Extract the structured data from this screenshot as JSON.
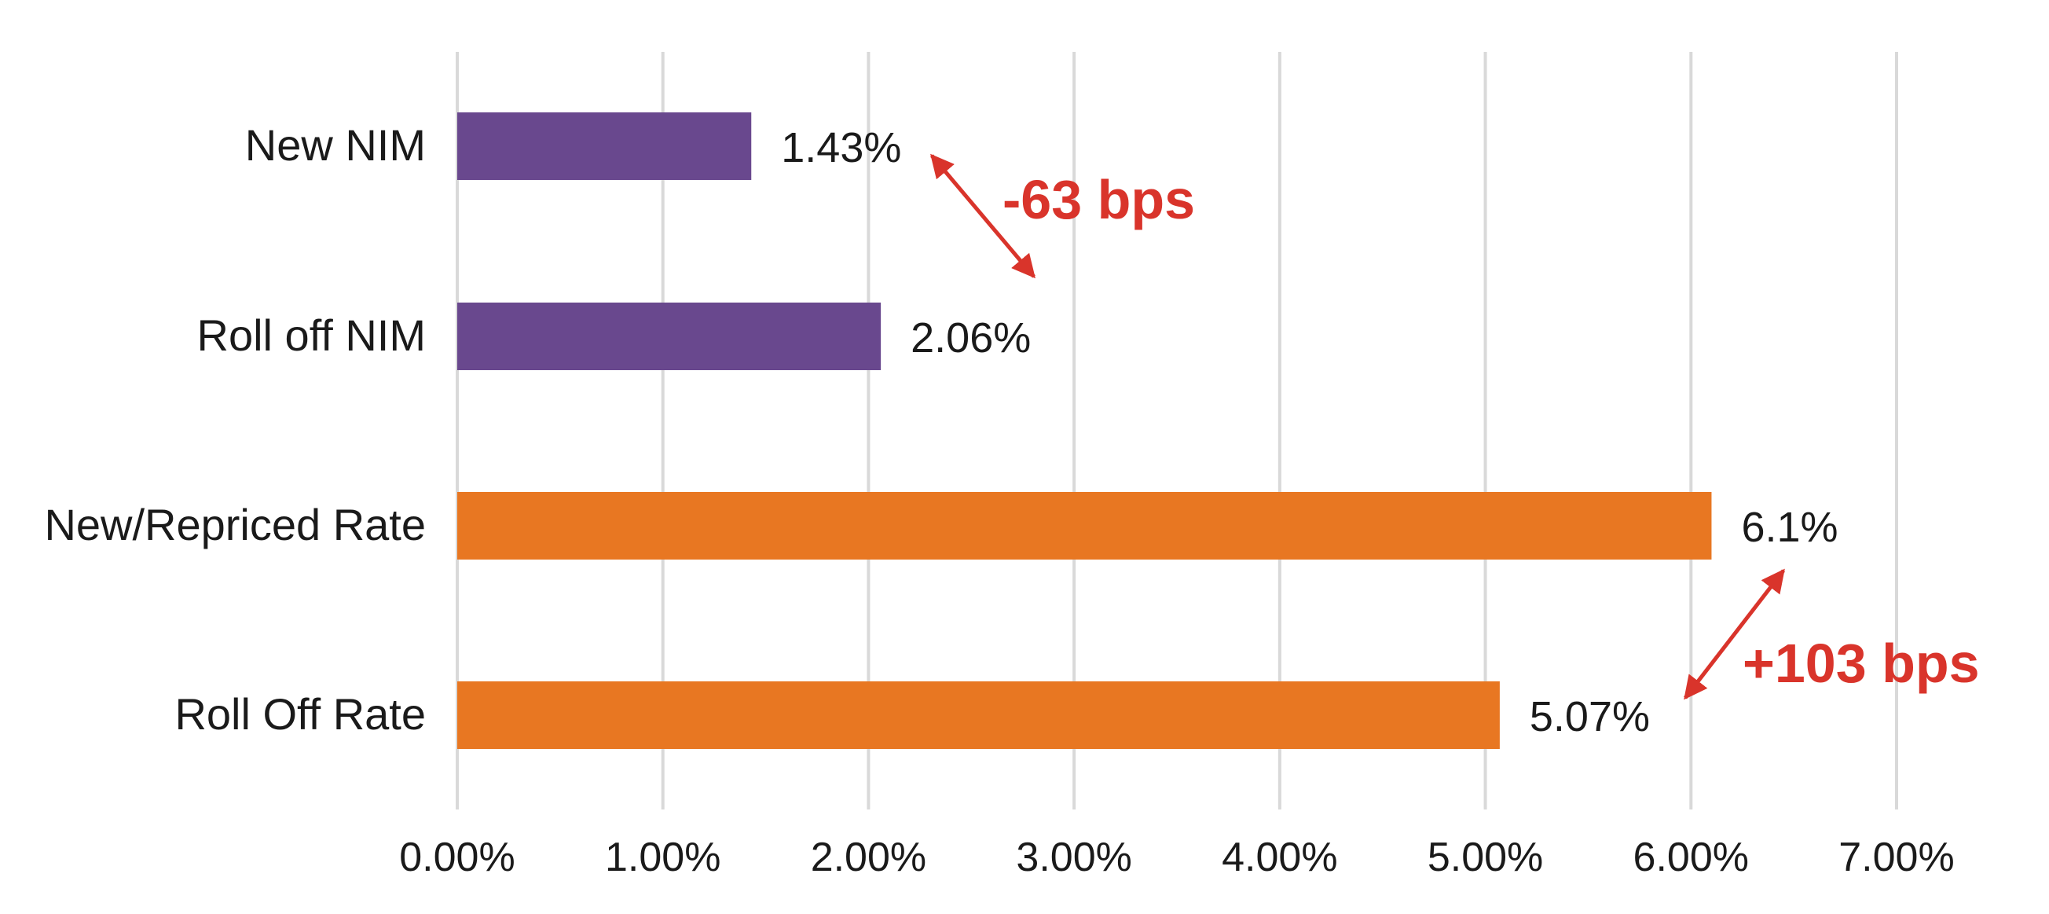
{
  "colors": {
    "nim": "#69488e",
    "rate": "#e87722",
    "annotation": "#d9342b",
    "grid": "#d9d9d9"
  },
  "chart_data": {
    "type": "bar",
    "orientation": "horizontal",
    "categories": [
      "New NIM",
      "Roll off NIM",
      "New/Repriced Rate",
      "Roll Off Rate"
    ],
    "values": [
      1.43,
      2.06,
      6.1,
      5.07
    ],
    "data_labels": [
      "1.43%",
      "2.06%",
      "6.1%",
      "5.07%"
    ],
    "bar_color_keys": [
      "nim",
      "nim",
      "rate",
      "rate"
    ],
    "xlim": [
      0,
      7
    ],
    "xticks": [
      0,
      1,
      2,
      3,
      4,
      5,
      6,
      7
    ],
    "xtick_labels": [
      "0.00%",
      "1.00%",
      "2.00%",
      "3.00%",
      "4.00%",
      "5.00%",
      "6.00%",
      "7.00%"
    ],
    "grid": "vertical",
    "legend": "none",
    "annotations": [
      {
        "text": "-63 bps",
        "between": [
          "New NIM",
          "Roll off NIM"
        ]
      },
      {
        "text": "+103 bps",
        "between": [
          "New/Repriced Rate",
          "Roll Off Rate"
        ]
      }
    ]
  }
}
